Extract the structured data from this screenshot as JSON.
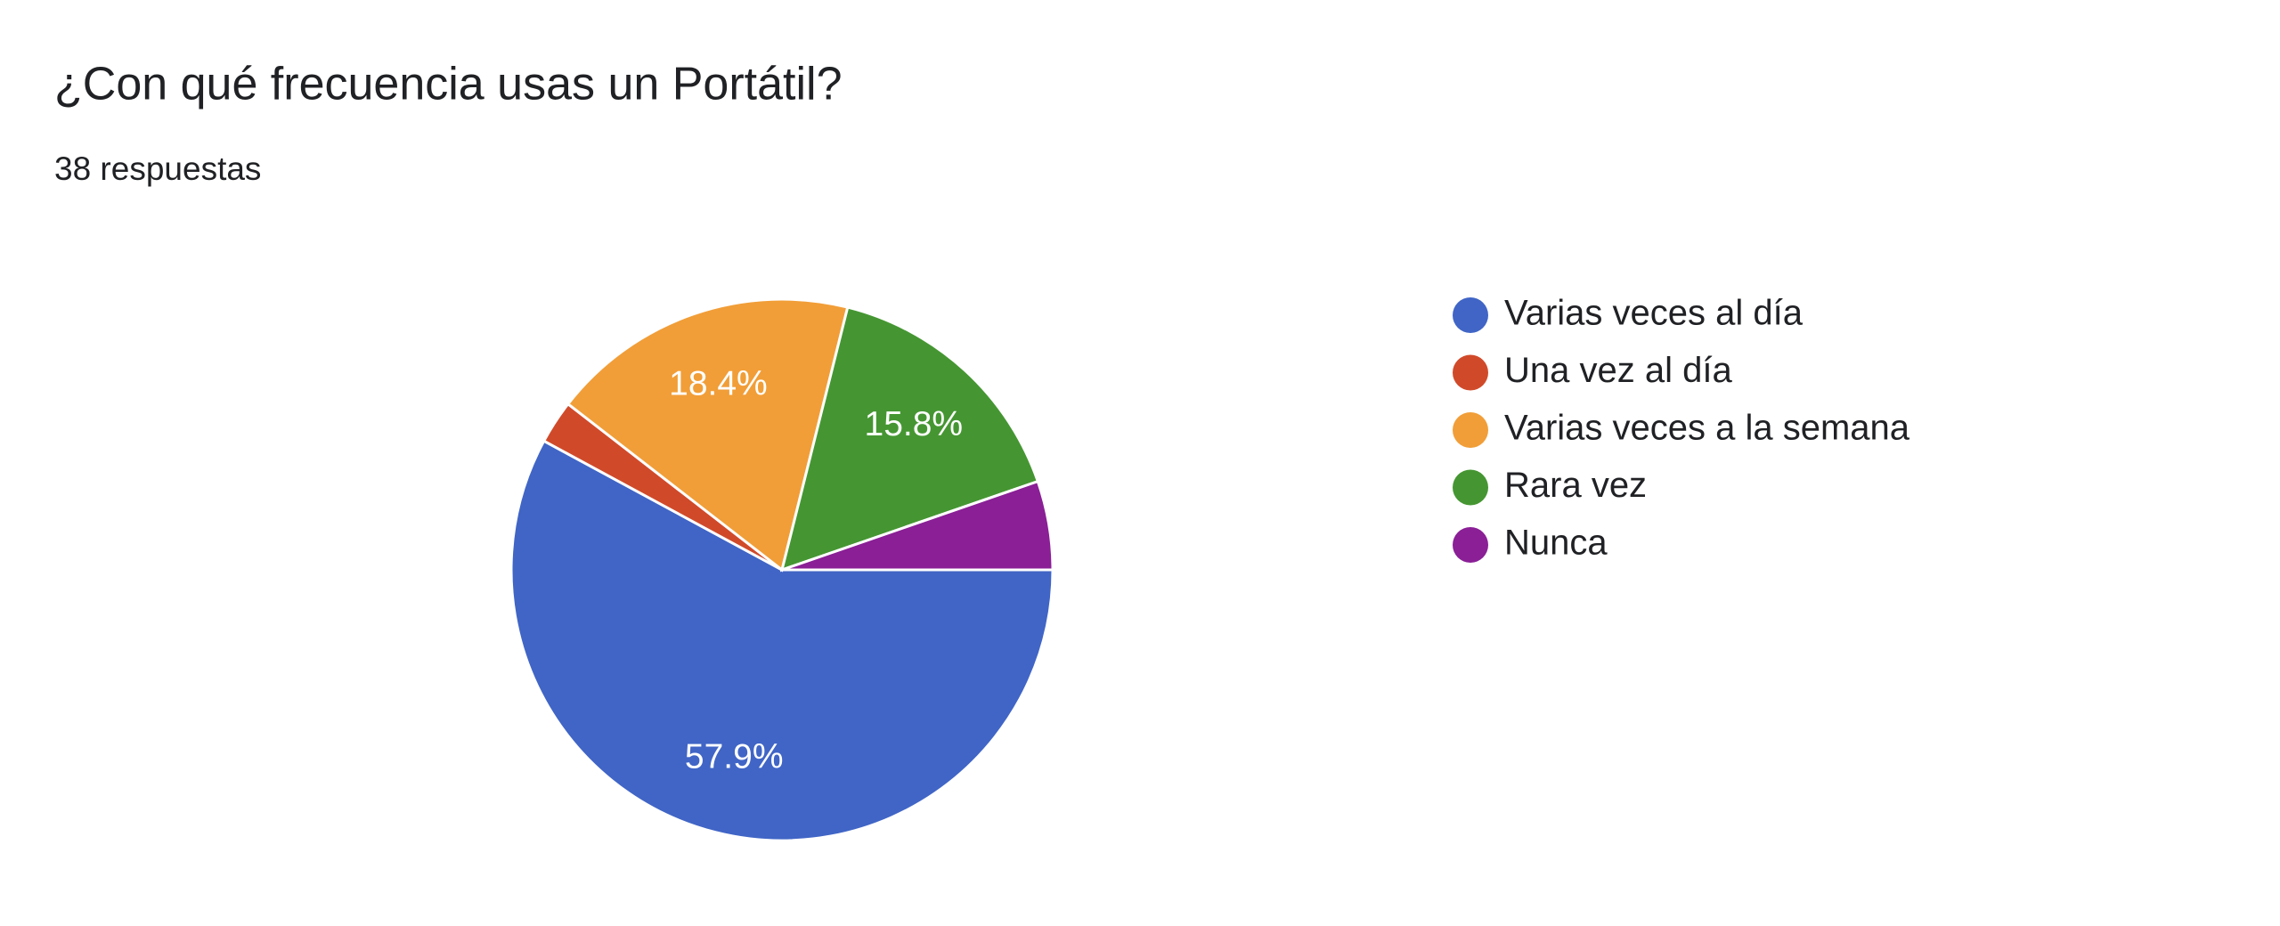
{
  "chart_data": {
    "type": "pie",
    "title": "¿Con qué frecuencia usas un Portátil?",
    "subtitle": "38 respuestas",
    "categories": [
      "Varias veces al día",
      "Una vez al día",
      "Varias veces a la semana",
      "Rara vez",
      "Nunca"
    ],
    "values": [
      57.9,
      2.6,
      18.4,
      15.8,
      5.3
    ],
    "value_labels": [
      "57.9%",
      null,
      "18.4%",
      "15.8%",
      null
    ],
    "colors": [
      "#4065c6",
      "#d04a2a",
      "#f19e38",
      "#459632",
      "#8a1f96"
    ],
    "legend": "right"
  }
}
